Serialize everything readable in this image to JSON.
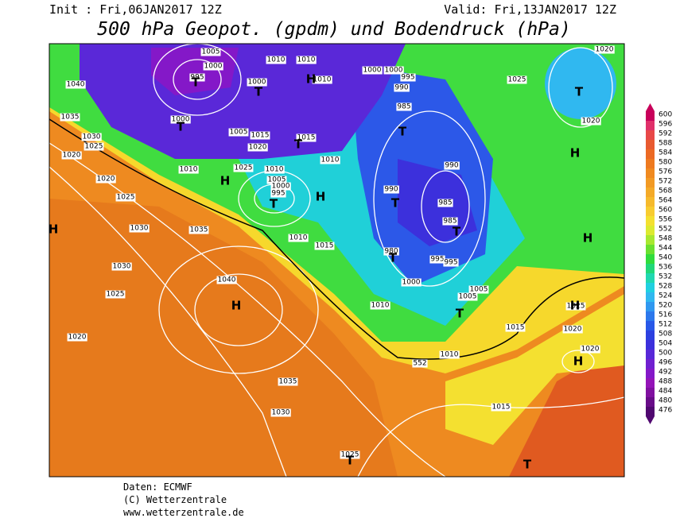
{
  "header": {
    "init": "Init : Fri,06JAN2017 12Z",
    "valid": "Valid: Fri,13JAN2017 12Z",
    "title": "500 hPa Geopot. (gpdm) und Bodendruck (hPa)"
  },
  "legend": {
    "levels": [
      600,
      596,
      592,
      588,
      584,
      580,
      576,
      572,
      568,
      564,
      560,
      556,
      552,
      548,
      544,
      540,
      536,
      532,
      528,
      524,
      520,
      516,
      512,
      508,
      504,
      500,
      496,
      492,
      488,
      484,
      480,
      476
    ],
    "colors": [
      "#c8005a",
      "#e0306a",
      "#e84848",
      "#e85a30",
      "#ec6a24",
      "#ee7a20",
      "#f08a20",
      "#f29a24",
      "#f4aa28",
      "#f6ba2c",
      "#f8cc30",
      "#f4e030",
      "#dcea30",
      "#a8e830",
      "#6ae030",
      "#30dc3c",
      "#20d878",
      "#20d8b0",
      "#20d0e0",
      "#30b8f0",
      "#3098f0",
      "#2c78ec",
      "#2858e8",
      "#2c40e0",
      "#3c30dc",
      "#5828d8",
      "#7020d0",
      "#8418c8",
      "#9414b8",
      "#8010a0",
      "#680c88",
      "#500870"
    ]
  },
  "map": {
    "labels": [
      "1005",
      "1000",
      "995",
      "1000",
      "1040",
      "1035",
      "1030",
      "1025",
      "1020",
      "1010",
      "1010",
      "1000",
      "1010",
      "1000",
      "1000",
      "995",
      "990",
      "985",
      "1005",
      "1015",
      "1020",
      "1015",
      "1010",
      "1025",
      "1010",
      "1005",
      "1000",
      "995",
      "1010",
      "990",
      "990",
      "985",
      "985",
      "1020",
      "1025",
      "1030",
      "1035",
      "1010",
      "1015",
      "980",
      "995",
      "995",
      "1000",
      "1005",
      "1005",
      "1010",
      "1030",
      "1025",
      "1040",
      "1020",
      "1015",
      "1020",
      "1025",
      "1020",
      "1010",
      "1035",
      "1030",
      "1015",
      "1025",
      "1020",
      "1025",
      "1020",
      "552"
    ],
    "symbols": [
      "T",
      "T",
      "T",
      "H",
      "T",
      "H",
      "T",
      "H",
      "T",
      "T",
      "T",
      "T",
      "T",
      "H",
      "H",
      "H",
      "H",
      "H",
      "T",
      "T",
      "T",
      "H"
    ]
  },
  "footer": {
    "lines": [
      "Daten: ECMWF",
      "(C) Wetterzentrale",
      "www.wetterzentrale.de"
    ]
  }
}
